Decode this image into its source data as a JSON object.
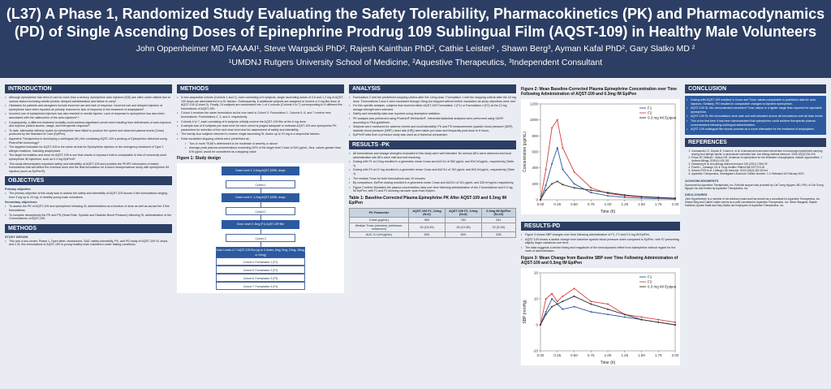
{
  "header": {
    "title": "(L37) A Phase 1, Randomized Study Evaluating the Safety Tolerability, Pharmacokinetics (PK) and Pharmacodynamics (PD) of Single Ascending Doses of Epinephrine Prodrug 109 Sublingual Film (AQST-109) in Healthy Male Volunteers",
    "authors": "John Oppenheimer MD FAAAAI¹, Steve Wargacki PhD², Rajesh Kainthan PhD², Cathie Leister³ , Shawn Berg³, Ayman Kafal PhD², Gary Slatko MD ²",
    "affiliations": "¹UMDNJ Rutgers University School of Medicine, ²Aquestive Therapeutics, ³Independent Consultant"
  },
  "intro": {
    "heading": "INTRODUCTION",
    "bullets": [
      "Although epinephrine has been in use for more than a century, epinephrine auto injectors (EAI) are often under utilized due to various factors including needle phobia, delayed administration and failure to carry¹.",
      "Obstacles for patients and caregivers include incorrect use and lack of response. Incorrect use and delayed injection of epinephrine have been reported as primary reasons for lack of response in the treatment of anaphylaxis².",
      "Incorrect use of epinephrine injectors has also resulted in needle injuries. Lack of response to epinephrine has also been associated with the malfunction of the auto-injectors³,⁴.",
      "Consequently, a different treatment modality could address significant unmet need resulting from deficiencies of auto-injectors and improve patient access, usage, and therapeutic response⁵.",
      "To date, alternative delivery routes for epinephrine have failed to produce the speed and observed plasma levels (Cmax) produced by the Standard of Care (EpiPen).",
      "Aquestive Therapeutics is developing a sublingual (SL) film containing AQST-109 a prodrug of Epinephrine delivered using PharmFilm technology⁶.",
      "The targeted indication for AQST-109 is the same as that for Epinephrine injection in the emergency treatment of Type 1 allergic reactions, including anaphylaxis.",
      "The target formulation and dose for AQST-109 is one that results in exposure that is comparable to that of commonly used epinephrine IM injections, such as 0.3 mg EpiPen®.",
      "This study demonstrates important safety and tolerability of AQST-109 and provides the PK/PD information of tested formulations that will define the eventual dose and the final formulation for a future bioequivalence study with epinephrine IM injection (such as EpiPen®)."
    ]
  },
  "objectives": {
    "heading": "OBJECTIVES",
    "primary_label": "Primary objective",
    "primary": [
      "The primary objective of this study was to assess the safety and tolerability of AQST-109 across 4 film formulations ranging from 3 mg up to 24 mg, in healthy young male volunteers."
    ],
    "secondary_label": "Secondary objectives:",
    "secondary": [
      "To assess the PK of AQST-109 and epinephrine following SL administration as a function of dose as well as across the 4 film formulations.",
      "To compare descriptively the PK and PD (Heart Rate, Systolic and Diastolic Blood Pressure) following SL administration of the 4 formulations of AQST-109."
    ]
  },
  "methods_left": {
    "heading": "METHODS",
    "sub": "STUDY DESIGN",
    "bullets": [
      "This was a two-center, Phase 1, Open label, randomized, SAD, safety-tolerability, PK, and PD study of AQST-109 SL drops and 4 SL film formulations of AQST-109 in young healthy male volunteers under fasting conditions."
    ]
  },
  "methods": {
    "heading": "METHODS",
    "bullets": [
      "In two sequential cohorts (Cohorts 1 and 2), each consisting of 6 subjects, single ascending doses of 0.6 and 1.2 mg of AQST-109 drops are administered in a SL fashion. Subsequently, 6 additional subjects are assigned to receive a 3 mg film dose of AQST-109 (Cohort 3). Finally, 24 subjects are randomized into 1 of 4 cohorts (Cohorts 4 to 7) corresponding to 4 different film formulations of AQST-109.",
      "Cohort 4 receives the same formulation as the one used in Cohort 3: Formulation 1. Cohorts 5, 6, and 7 receive new formulations: Formulations 2, 3, and 4, respectively.",
      "Cohorts 4 to 7, each consisting of 6 subjects, initially receive the AQST-109 film at the 6 mg dose.",
      "A sample size of 6 subjects per dose level for each cohort is judged adequate to estimate AQST-109 and epinephrine PK parameters for selection of the next dose level and for assessment of safety and tolerability.",
      "The twenty-four subjects returned to receive single ascending SL doses up to 24 mg in a sequential fashion.",
      "Dose escalation stopping criteria were predefined as:"
    ],
    "sub_bullets": [
      "Two or more TEAE's determined to be moderate in severity or above",
      "Average peak plasma concentrations exceeding 30% of the target level Cmax of 520 pg/mL, thus, values greater than 676 pg/mL would be considered as a stopping value"
    ],
    "fig1_caption": "Figure 1: Study design",
    "flow": {
      "d1": "Dose Level 1: 0.6mg AQST-109SL drops",
      "c1": "Cohort 1",
      "d2": "Dose Level 2: 1.2mg AQST-109SL drops",
      "c2": "Cohort 2",
      "d3": "Dose Level 3: 3mg (F1) AQST-109 film",
      "c3": "Cohort 3",
      "d4": "Dose Levels 4-7: AQST-109 film (up to 4 doses, 6mg, 9mg, 12mg, 18mg, or 24mg)",
      "c4": "Cohort 4: Formulation 1 (F1)",
      "c5": "Cohort 5: Formulation 2 (F2)",
      "c6": "Cohort 6: Formulation 3 (F3)",
      "c7": "Cohort 7: Formulation 4 (F4)"
    }
  },
  "analysis": {
    "heading": "ANALYSIS",
    "bullets": [
      "Formulation 2 met the predefined stopping criteria after the 12mg dose. Formulation 1 met the stopping criteria after the 18 mg dose. Formulations 3 and 4 were escalated through 18mg but stopped without further escalation as study objectives were met.",
      "For this specific analysis, subjects that received either AQST-109 Formulation 1 (F1) or Formulation 2 (F2) at the 12 mg dosage strength were selected.",
      "Safety and tolerability data was reported using descriptive statistics.",
      "PK analysis was performed using Phoenix® WinNonlin®. Inferential statistical analyses were performed using SAS® according to FDA guidelines.",
      "Subjects were monitored for adverse events and local tolerability. PK and PD measurements (systolic blood pressure (SBP), diastolic blood pressure (DBP), heart rate (HR)) were taken pre-dose and frequently post-dose to 6 hours.",
      "EpiPen® data from a previous study was used as a historical comparator."
    ]
  },
  "results_pk": {
    "heading": "RESULTS -PK",
    "bullets": [
      "All formulations and dosage strengths evaluated in this study were well tolerated. No serious AE's were observed and local administration site AE's were mild and self-resolving.",
      "Dosing with F1 at 12mg resulted in a geometric mean Cmax and AUC0-t of 552 pg/mL and 634 hr*pg/mL, respectively (Table 1).",
      "Dosing with F2 at 12 mg resulted in a geometric mean Cmax and AUC0-t of 762 pg/mL and 603 hr*pg/mL, respectively (Table 1).",
      "The median Tmax for both formulations was 15 minutes.",
      "By comparison, EpiPen dosing resulted in a geometric mean Cmax and AUC0-t of 341 pg/mL and 328 hr*pg/mL respectively.",
      "Figure 2 further illustrates the plasma concentration data over time following administration of the 2 formulations and 0.3 mg IM EpiPen, with F1 and F2 showing narrower span than Epipen."
    ],
    "table_caption": "Table 1: Baseline-Corrected Plasma Epinephrine PK After AQST-109 and 0.3mg IM EpiPen",
    "table": {
      "headers": [
        "PK Parameter",
        "AQST-109 F1, 12mg (N=9)",
        "AQST-109 F2, 12mg (N=8)",
        "0.3mg IM EpiPen (N=10)"
      ],
      "rows": [
        [
          "Cmax (pg/mL)",
          "552",
          "762",
          "341"
        ],
        [
          "Median Tmax (minutes) (minimum, maximum)",
          "15 (15-25)",
          "15 (10-35)",
          "22 (5-90)"
        ],
        [
          "AUC 0-t (hr*pg/mL)",
          "634",
          "603",
          "328"
        ]
      ]
    }
  },
  "figure2": {
    "caption": "Figure 2: Mean Baseline-Corrected Plasma Epinephrine Concentration over Time Following Administration of AQST-109 and 0.3mg IM EpiPen",
    "chart_data": {
      "type": "line",
      "x": [
        0,
        0.08,
        0.17,
        0.25,
        0.33,
        0.5,
        0.75,
        1,
        1.25,
        1.5,
        1.75,
        2
      ],
      "series": [
        {
          "name": "F1",
          "values": [
            0,
            180,
            450,
            650,
            380,
            200,
            90,
            50,
            30,
            20,
            15,
            10
          ]
        },
        {
          "name": "F2",
          "values": [
            0,
            380,
            900,
            1000,
            650,
            350,
            150,
            80,
            50,
            35,
            25,
            20
          ]
        },
        {
          "name": "0.3 mg IM Epipen",
          "values": [
            0,
            120,
            200,
            230,
            190,
            150,
            120,
            90,
            60,
            40,
            30,
            20
          ]
        }
      ],
      "xlabel": "Time (h)",
      "ylabel": "Concentration (pg/mL)",
      "xlim": [
        0,
        2
      ],
      "ylim": [
        0,
        1200
      ],
      "xticks": [
        "0.00",
        "0.25",
        "0.50",
        "0.75",
        "1.00",
        "1.25",
        "1.50",
        "1.75",
        "2.00"
      ],
      "yticks": [
        "0",
        "200",
        "400",
        "600",
        "800",
        "1000",
        "1200"
      ],
      "colors": [
        "#2c5aa0",
        "#d94040",
        "#333333"
      ]
    }
  },
  "results_pd": {
    "heading": "RESULTS-PD",
    "bullets": [
      "Figure 3 shows SBP changes over time following administration of F1, F2 and 0.3 mg IM EpiPen.",
      "AQST-109 shows a similar change from baseline systolic blood pressure when compared to EpiPen, with F2 presenting slightly larger variations over time.",
      "The data suggests a similar timing and magnitude of the hemodynamic effect from epinephrine without regard for the route of administration."
    ]
  },
  "figure3": {
    "caption": "Figure 3: Mean Change from Baseline SBP over Time Following Administration of AQST-109 and 0.3mg IM EpiPen",
    "chart_data": {
      "type": "line",
      "x": [
        0,
        0.08,
        0.17,
        0.25,
        0.33,
        0.5,
        0.75,
        1,
        1.25,
        1.5,
        1.75,
        2
      ],
      "series": [
        {
          "name": "F1",
          "values": [
            0,
            5,
            10,
            8,
            6,
            7,
            5,
            4,
            3,
            2,
            1,
            0
          ]
        },
        {
          "name": "F2",
          "values": [
            0,
            10,
            12,
            9,
            11,
            14,
            9,
            8,
            4,
            3,
            2,
            1
          ]
        },
        {
          "name": "0.3 mg IM Epipen",
          "values": [
            0,
            4,
            7,
            8,
            9,
            11,
            8,
            6,
            4,
            2,
            1,
            0
          ]
        }
      ],
      "xlabel": "Time (h)",
      "ylabel": "SBP (mmHg)",
      "xlim": [
        0,
        2
      ],
      "ylim": [
        -10,
        20
      ],
      "xticks": [
        "0.00",
        "0.25",
        "0.50",
        "0.75",
        "1.00",
        "1.25",
        "1.50",
        "1.75",
        "2.00"
      ],
      "yticks": [
        "-10",
        "0",
        "10",
        "20"
      ],
      "colors": [
        "#2c5aa0",
        "#d94040",
        "#333333"
      ]
    }
  },
  "conclusion": {
    "heading": "CONCLUSION",
    "bullets": [
      "Dosing with AQST-109 resulted in Cmax and Tmax values comparable to published data for auto-injectors. Similarly, PD resulted in comparable changes to injected epinephrine.",
      "AQST-109 SL film demonstrated consistent Tmax values in a tighter range than reported for injectable epinephrine.",
      "AQST-109 SL film formulations were safe and well-tolerated across all formulations and all dose levels.",
      "This is the first time it has been demonstrated that epinephrine could achieve therapeutic plasma concentrations following sublingual administration.",
      "AQST-109 sublingual film shows promise as a novel alternative for the treatment of anaphylaxis."
    ]
  },
  "references": {
    "heading": "REFERENCES",
    "items": [
      "Cammarota CC, Dupuis R, Cowen A, et al. A behavioral economics intervention to encourage epinephrine-carrying among food allergic adults: a randomized controlled trial. Ann Allergy Asthma Immunol. 2015;115(3):234-240",
      "Prince BT, Mikhail I, Stukus DR. Underuse of epinephrine for the treatment of anaphylaxis: missed opportunities. J Asthma Allergy. 2018;11:143-151",
      "Glassberg et al. Ann Allergy Asthma Immunol 126 (2021) 175e178",
      "Powell L, Camargo CA Jr. Drug Healthc Patient Saf 2017;9:9-18",
      "Simons FER et al. J Allergy Clin Immunol. 2010;125(2):419-423.e4",
      "Aquestive Therapeutics, Investigator's Brochure. Edition Number: 1.0. Released 18 February 2021."
    ],
    "ack_heading": "ACKNOWLEDGMENTS",
    "ack": "Sponsored by Aquestive Therapeutics, Inc. Editorial support was provided by Cat Tuong Nguyen, MD, PhD, of Cat Tuong Nguyen Inc and funded by Aquestive Therapeutics, Inc.",
    "disc_heading": "DISCLOSURES",
    "disc": "John Oppenheimer is a member of the Advisory board and has served as a consultant for Aquestive Therapeutics, Inc. Shawn Berg and Cathie Leister serves as a paid consultant to Aquestive Therapeutics, Inc. Steve Wargacki, Rajesh Kainthan, Ayman Kafal and Gary Slatko are employees of Aquestive Therapeutics, Inc."
  }
}
